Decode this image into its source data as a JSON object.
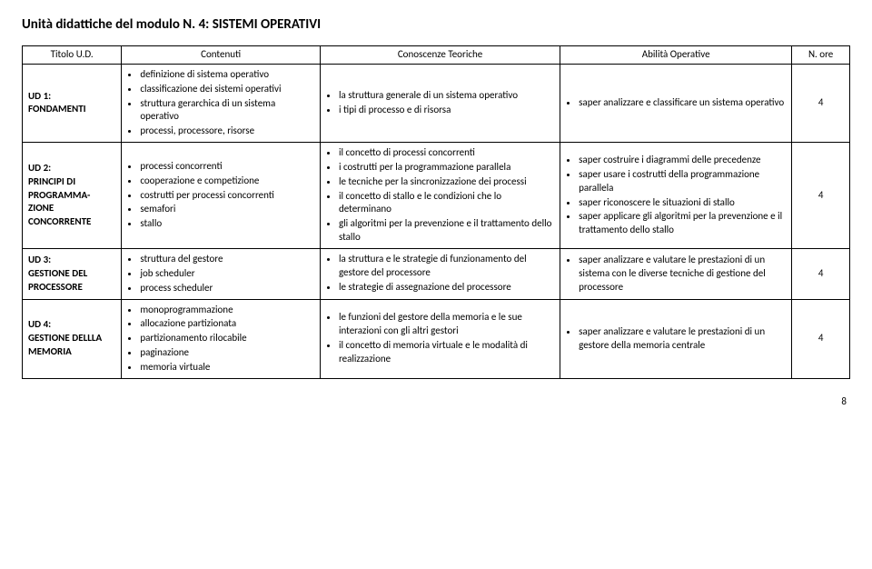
{
  "title": "Unità didattiche del modulo N. 4: SISTEMI OPERATIVI",
  "page_number": "8",
  "headers": {
    "titolo": "Titolo  U.D.",
    "contenuti": "Contenuti",
    "conoscenze": "Conoscenze Teoriche",
    "abilita": "Abilità Operative",
    "ore": "N. ore"
  },
  "rows": [
    {
      "titolo_key": "UD 1:",
      "titolo_name": "FONDAMENTI",
      "contenuti": [
        "definizione di sistema operativo",
        "classificazione dei sistemi operativi",
        "struttura gerarchica di un sistema operativo",
        "processi, processore, risorse"
      ],
      "conoscenze": [
        "la struttura generale di un sistema operativo",
        "i tipi di processo e di risorsa"
      ],
      "abilita": [
        "saper analizzare e classificare un sistema operativo"
      ],
      "ore": "4"
    },
    {
      "titolo_key": "UD 2:",
      "titolo_name": "PRINCIPI DI PROGRAMMA-ZIONE CONCORRENTE",
      "contenuti": [
        "processi concorrenti",
        "cooperazione e competizione",
        "costrutti per processi concorrenti",
        "semafori",
        "stallo"
      ],
      "conoscenze": [
        "il concetto di processi concorrenti",
        "i costrutti per la programmazione parallela",
        "le tecniche per la sincronizzazione dei processi",
        "il concetto di stallo e le condizioni che lo determinano",
        "gli algoritmi per la prevenzione e il trattamento dello stallo"
      ],
      "abilita": [
        "saper costruire i diagrammi delle precedenze",
        "saper usare i costrutti della programmazione parallela",
        "saper riconoscere le situazioni di stallo",
        "saper applicare gli algoritmi per la prevenzione e il trattamento dello stallo"
      ],
      "ore": "4"
    },
    {
      "titolo_key": "UD 3:",
      "titolo_name": "GESTIONE DEL PROCESSORE",
      "contenuti": [
        "struttura del gestore",
        "job scheduler",
        "process scheduler"
      ],
      "conoscenze": [
        "la struttura e le strategie di funzionamento del gestore del processore",
        "le strategie di assegnazione del processore"
      ],
      "abilita": [
        "saper analizzare e valutare le prestazioni di un sistema con le diverse tecniche di gestione del processore"
      ],
      "ore": "4"
    },
    {
      "titolo_key": "UD 4:",
      "titolo_name": "GESTIONE DELLLA MEMORIA",
      "contenuti": [
        "monoprogrammazione",
        "allocazione partizionata",
        "partizionamento rilocabile",
        "paginazione",
        "memoria virtuale"
      ],
      "conoscenze": [
        "le funzioni del gestore della memoria e le sue interazioni con gli altri gestori",
        "il concetto di memoria virtuale e le modalità di realizzazione"
      ],
      "abilita": [
        "saper analizzare e valutare le prestazioni di un gestore della memoria centrale"
      ],
      "ore": "4"
    }
  ]
}
